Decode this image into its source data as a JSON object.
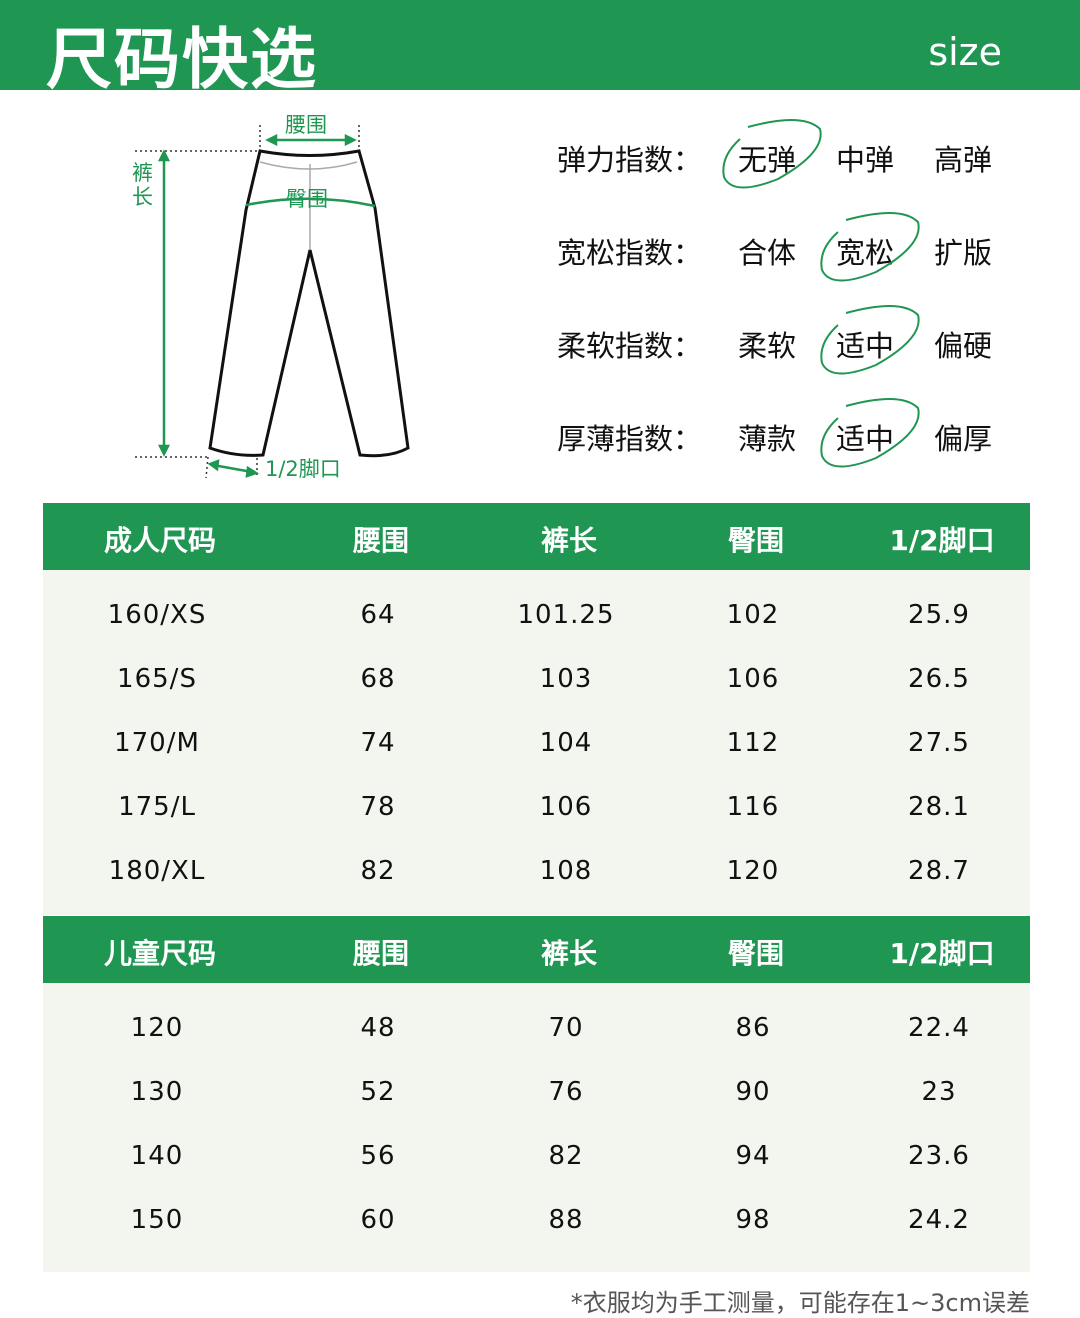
{
  "header": {
    "title": "尺码快选",
    "subtitle": "size"
  },
  "diagram": {
    "waist": "腰围",
    "hip": "臀围",
    "length": "裤长",
    "hem": "1/2脚口"
  },
  "ratings": [
    {
      "label": "弹力指数：",
      "options": [
        "无弹",
        "中弹",
        "高弹"
      ],
      "selected": 0
    },
    {
      "label": "宽松指数：",
      "options": [
        "合体",
        "宽松",
        "扩版"
      ],
      "selected": 1
    },
    {
      "label": "柔软指数：",
      "options": [
        "柔软",
        "适中",
        "偏硬"
      ],
      "selected": 1
    },
    {
      "label": "厚薄指数：",
      "options": [
        "薄款",
        "适中",
        "偏厚"
      ],
      "selected": 1
    }
  ],
  "adult": {
    "headers": [
      "成人尺码",
      "腰围",
      "裤长",
      "臀围",
      "1/2脚口"
    ],
    "rows": [
      [
        "160/XS",
        "64",
        "101.25",
        "102",
        "25.9"
      ],
      [
        "165/S",
        "68",
        "103",
        "106",
        "26.5"
      ],
      [
        "170/M",
        "74",
        "104",
        "112",
        "27.5"
      ],
      [
        "175/L",
        "78",
        "106",
        "116",
        "28.1"
      ],
      [
        "180/XL",
        "82",
        "108",
        "120",
        "28.7"
      ]
    ]
  },
  "kids": {
    "headers": [
      "儿童尺码",
      "腰围",
      "裤长",
      "臀围",
      "1/2脚口"
    ],
    "rows": [
      [
        "120",
        "48",
        "70",
        "86",
        "22.4"
      ],
      [
        "130",
        "52",
        "76",
        "90",
        "23"
      ],
      [
        "140",
        "56",
        "82",
        "94",
        "23.6"
      ],
      [
        "150",
        "60",
        "88",
        "98",
        "24.2"
      ]
    ]
  },
  "footnote": "*衣服均为手工测量，可能存在1~3cm误差",
  "colors": {
    "accent": "#1f9652",
    "table_bg": "#f3f6ef"
  }
}
